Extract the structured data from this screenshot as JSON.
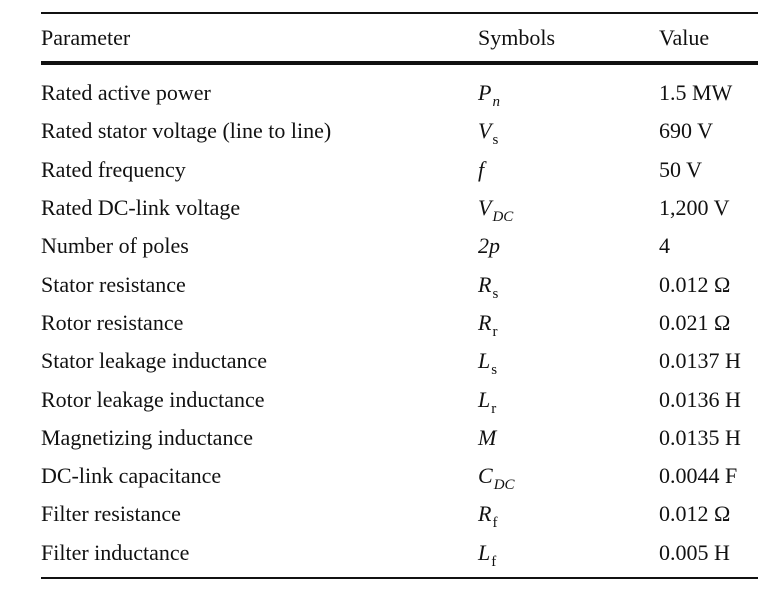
{
  "table": {
    "headers": {
      "parameter": "Parameter",
      "symbols": "Symbols",
      "value": "Value"
    },
    "rows": [
      {
        "parameter": "Rated active power",
        "symbol": "P",
        "sub": "n",
        "sub_italic": true,
        "value": "1.5 MW"
      },
      {
        "parameter": "Rated stator voltage (line to line)",
        "symbol": "V",
        "sub": "s",
        "sub_italic": false,
        "value": "690 V"
      },
      {
        "parameter": "Rated frequency",
        "symbol": "f",
        "sub": "",
        "sub_italic": false,
        "value": "50 V"
      },
      {
        "parameter": "Rated DC-link voltage",
        "symbol": "V",
        "sub": "DC",
        "sub_italic": true,
        "value": "1,200 V"
      },
      {
        "parameter": "Number of poles",
        "symbol": "2p",
        "sub": "",
        "sub_italic": false,
        "value": "4"
      },
      {
        "parameter": "Stator resistance",
        "symbol": "R",
        "sub": "s",
        "sub_italic": false,
        "value": "0.012 Ω"
      },
      {
        "parameter": "Rotor resistance",
        "symbol": "R",
        "sub": "r",
        "sub_italic": false,
        "value": "0.021 Ω"
      },
      {
        "parameter": "Stator leakage inductance",
        "symbol": "L",
        "sub": "s",
        "sub_italic": false,
        "value": "0.0137 H"
      },
      {
        "parameter": "Rotor leakage inductance",
        "symbol": "L",
        "sub": "r",
        "sub_italic": false,
        "value": "0.0136 H"
      },
      {
        "parameter": "Magnetizing inductance",
        "symbol": "M",
        "sub": "",
        "sub_italic": false,
        "value": "0.0135 H"
      },
      {
        "parameter": "DC-link capacitance",
        "symbol": "C",
        "sub": "DC",
        "sub_italic": true,
        "value": "0.0044 F"
      },
      {
        "parameter": "Filter resistance",
        "symbol": "R",
        "sub": "f",
        "sub_italic": false,
        "value": "0.012 Ω"
      },
      {
        "parameter": "Filter inductance",
        "symbol": "L",
        "sub": "f",
        "sub_italic": false,
        "value": "0.005 H"
      }
    ]
  }
}
